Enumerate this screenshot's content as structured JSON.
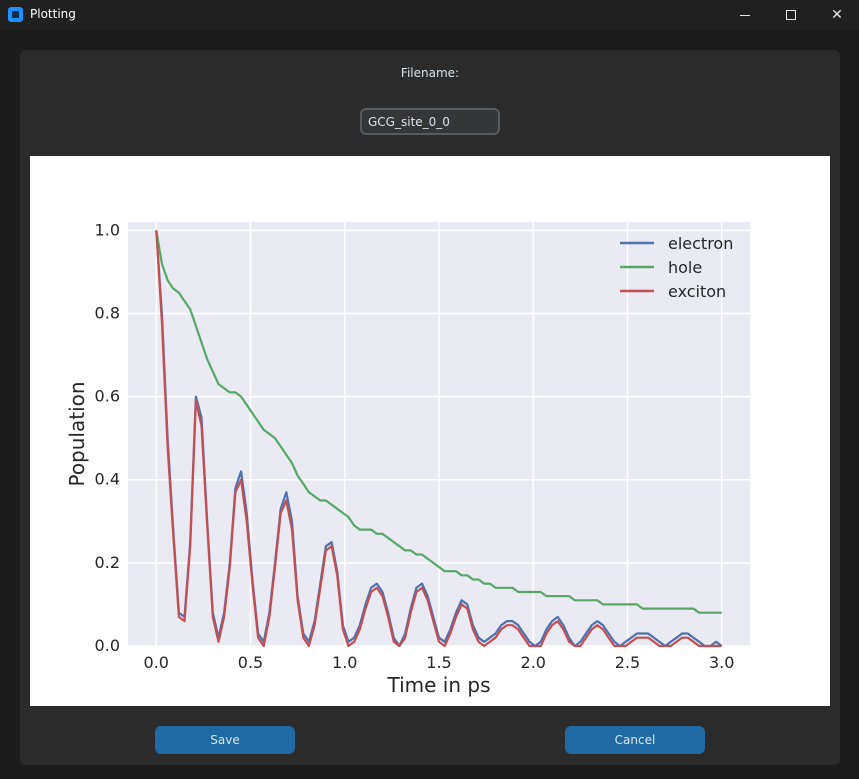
{
  "window": {
    "title": "Plotting"
  },
  "form": {
    "filename_label": "Filename:",
    "filename_value": "GCG_site_0_0"
  },
  "buttons": {
    "save_label": "Save",
    "cancel_label": "Cancel"
  },
  "colors": {
    "accent": "#1f6aa5",
    "plot_bg": "#eaeaf2",
    "electron": "#4c72b0",
    "hole": "#55a868",
    "exciton": "#c44e52"
  },
  "chart_data": {
    "type": "line",
    "title": "",
    "xlabel": "Time in ps",
    "ylabel": "Population",
    "xlim": [
      -0.15,
      3.15
    ],
    "ylim": [
      0,
      1.02
    ],
    "x_ticks": [
      "0.0",
      "0.5",
      "1.0",
      "1.5",
      "2.0",
      "2.5",
      "3.0"
    ],
    "y_ticks": [
      "0.0",
      "0.2",
      "0.4",
      "0.6",
      "0.8",
      "1.0"
    ],
    "grid": true,
    "legend_position": "top-right",
    "x": [
      0.0,
      0.03,
      0.06,
      0.09,
      0.12,
      0.15,
      0.18,
      0.21,
      0.24,
      0.27,
      0.3,
      0.33,
      0.36,
      0.39,
      0.42,
      0.45,
      0.48,
      0.51,
      0.54,
      0.57,
      0.6,
      0.63,
      0.66,
      0.69,
      0.72,
      0.75,
      0.78,
      0.81,
      0.84,
      0.87,
      0.9,
      0.93,
      0.96,
      0.99,
      1.02,
      1.05,
      1.08,
      1.11,
      1.14,
      1.17,
      1.2,
      1.23,
      1.26,
      1.29,
      1.32,
      1.35,
      1.38,
      1.41,
      1.44,
      1.47,
      1.5,
      1.53,
      1.56,
      1.59,
      1.62,
      1.65,
      1.68,
      1.71,
      1.74,
      1.77,
      1.8,
      1.83,
      1.86,
      1.89,
      1.92,
      1.95,
      1.98,
      2.01,
      2.04,
      2.07,
      2.1,
      2.13,
      2.16,
      2.19,
      2.22,
      2.25,
      2.28,
      2.31,
      2.34,
      2.37,
      2.4,
      2.43,
      2.46,
      2.49,
      2.52,
      2.55,
      2.58,
      2.61,
      2.64,
      2.67,
      2.7,
      2.73,
      2.76,
      2.79,
      2.82,
      2.85,
      2.88,
      2.91,
      2.94,
      2.97,
      3.0
    ],
    "series": [
      {
        "name": "electron",
        "values": [
          1.0,
          0.8,
          0.5,
          0.28,
          0.08,
          0.07,
          0.25,
          0.6,
          0.55,
          0.3,
          0.08,
          0.02,
          0.08,
          0.2,
          0.38,
          0.42,
          0.32,
          0.16,
          0.03,
          0.01,
          0.08,
          0.2,
          0.33,
          0.37,
          0.3,
          0.12,
          0.03,
          0.01,
          0.06,
          0.15,
          0.24,
          0.25,
          0.18,
          0.05,
          0.01,
          0.02,
          0.05,
          0.1,
          0.14,
          0.15,
          0.13,
          0.08,
          0.02,
          0.0,
          0.03,
          0.09,
          0.14,
          0.15,
          0.12,
          0.07,
          0.02,
          0.01,
          0.04,
          0.08,
          0.11,
          0.1,
          0.05,
          0.02,
          0.01,
          0.02,
          0.03,
          0.05,
          0.06,
          0.06,
          0.05,
          0.03,
          0.01,
          0.0,
          0.01,
          0.04,
          0.06,
          0.07,
          0.05,
          0.02,
          0.0,
          0.01,
          0.03,
          0.05,
          0.06,
          0.05,
          0.03,
          0.01,
          0.0,
          0.01,
          0.02,
          0.03,
          0.03,
          0.03,
          0.02,
          0.01,
          0.0,
          0.01,
          0.02,
          0.03,
          0.03,
          0.02,
          0.01,
          0.0,
          0.0,
          0.01,
          0.0
        ]
      },
      {
        "name": "hole",
        "values": [
          1.0,
          0.92,
          0.88,
          0.86,
          0.85,
          0.83,
          0.81,
          0.77,
          0.73,
          0.69,
          0.66,
          0.63,
          0.62,
          0.61,
          0.61,
          0.6,
          0.58,
          0.56,
          0.54,
          0.52,
          0.51,
          0.5,
          0.48,
          0.46,
          0.44,
          0.41,
          0.39,
          0.37,
          0.36,
          0.35,
          0.35,
          0.34,
          0.33,
          0.32,
          0.31,
          0.29,
          0.28,
          0.28,
          0.28,
          0.27,
          0.27,
          0.26,
          0.25,
          0.24,
          0.23,
          0.23,
          0.22,
          0.22,
          0.21,
          0.2,
          0.19,
          0.18,
          0.18,
          0.18,
          0.17,
          0.17,
          0.16,
          0.16,
          0.15,
          0.15,
          0.14,
          0.14,
          0.14,
          0.14,
          0.13,
          0.13,
          0.13,
          0.13,
          0.13,
          0.12,
          0.12,
          0.12,
          0.12,
          0.12,
          0.11,
          0.11,
          0.11,
          0.11,
          0.11,
          0.1,
          0.1,
          0.1,
          0.1,
          0.1,
          0.1,
          0.1,
          0.09,
          0.09,
          0.09,
          0.09,
          0.09,
          0.09,
          0.09,
          0.09,
          0.09,
          0.09,
          0.08,
          0.08,
          0.08,
          0.08,
          0.08
        ]
      },
      {
        "name": "exciton",
        "values": [
          1.0,
          0.78,
          0.48,
          0.27,
          0.07,
          0.06,
          0.24,
          0.59,
          0.53,
          0.29,
          0.07,
          0.01,
          0.07,
          0.19,
          0.37,
          0.4,
          0.3,
          0.15,
          0.02,
          0.0,
          0.07,
          0.19,
          0.32,
          0.35,
          0.28,
          0.11,
          0.02,
          0.0,
          0.05,
          0.14,
          0.23,
          0.24,
          0.17,
          0.04,
          0.0,
          0.01,
          0.04,
          0.09,
          0.13,
          0.14,
          0.12,
          0.07,
          0.01,
          0.0,
          0.02,
          0.08,
          0.13,
          0.14,
          0.11,
          0.06,
          0.01,
          0.0,
          0.03,
          0.07,
          0.1,
          0.09,
          0.04,
          0.01,
          0.0,
          0.01,
          0.02,
          0.04,
          0.05,
          0.05,
          0.04,
          0.02,
          0.0,
          0.0,
          0.0,
          0.03,
          0.05,
          0.06,
          0.04,
          0.01,
          0.0,
          0.0,
          0.02,
          0.04,
          0.05,
          0.04,
          0.02,
          0.0,
          0.0,
          0.0,
          0.01,
          0.02,
          0.02,
          0.02,
          0.01,
          0.0,
          0.0,
          0.0,
          0.01,
          0.02,
          0.02,
          0.01,
          0.0,
          0.0,
          0.0,
          0.0,
          0.0
        ]
      }
    ]
  }
}
